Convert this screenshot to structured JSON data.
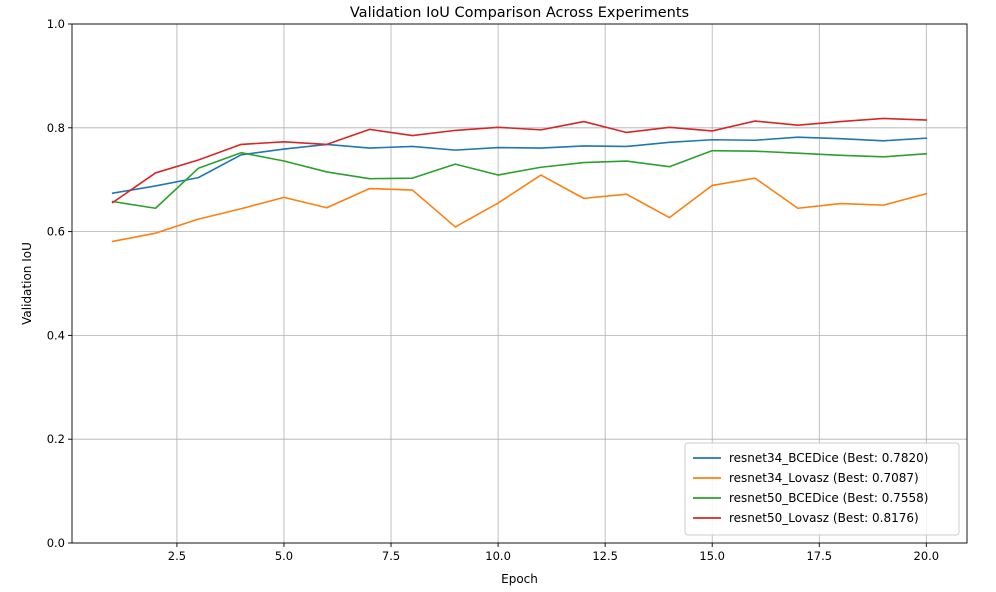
{
  "chart_data": {
    "type": "line",
    "title": "Validation IoU Comparison Across Experiments",
    "xlabel": "Epoch",
    "ylabel": "Validation IoU",
    "xlim": [
      0.05,
      20.95
    ],
    "ylim": [
      0.0,
      1.0
    ],
    "grid": true,
    "legend_position": "lower-right",
    "x": [
      1,
      2,
      3,
      4,
      5,
      6,
      7,
      8,
      9,
      10,
      11,
      12,
      13,
      14,
      15,
      16,
      17,
      18,
      19,
      20
    ],
    "xticks": [
      2.5,
      5.0,
      7.5,
      10.0,
      12.5,
      15.0,
      17.5,
      20.0
    ],
    "xtick_labels": [
      "2.5",
      "5.0",
      "7.5",
      "10.0",
      "12.5",
      "15.0",
      "17.5",
      "20.0"
    ],
    "yticks": [
      0.0,
      0.2,
      0.4,
      0.6,
      0.8,
      1.0
    ],
    "ytick_labels": [
      "0.0",
      "0.2",
      "0.4",
      "0.6",
      "0.8",
      "1.0"
    ],
    "series": [
      {
        "name": "resnet34_BCEDice (Best: 0.7820)",
        "color": "#1f77b4",
        "values": [
          0.674,
          0.688,
          0.704,
          0.748,
          0.759,
          0.768,
          0.761,
          0.764,
          0.757,
          0.762,
          0.761,
          0.765,
          0.764,
          0.772,
          0.777,
          0.776,
          0.782,
          0.779,
          0.775,
          0.78
        ]
      },
      {
        "name": "resnet34_Lovasz (Best: 0.7087)",
        "color": "#ff7f0e",
        "values": [
          0.581,
          0.597,
          0.624,
          0.644,
          0.666,
          0.646,
          0.683,
          0.68,
          0.609,
          0.655,
          0.709,
          0.664,
          0.672,
          0.627,
          0.689,
          0.703,
          0.645,
          0.654,
          0.651,
          0.673
        ]
      },
      {
        "name": "resnet50_BCEDice (Best: 0.7558)",
        "color": "#2ca02c",
        "values": [
          0.658,
          0.645,
          0.722,
          0.752,
          0.736,
          0.715,
          0.702,
          0.703,
          0.73,
          0.709,
          0.724,
          0.733,
          0.736,
          0.725,
          0.756,
          0.755,
          0.751,
          0.747,
          0.744,
          0.75
        ]
      },
      {
        "name": "resnet50_Lovasz (Best: 0.8176)",
        "color": "#d62728",
        "values": [
          0.656,
          0.713,
          0.738,
          0.768,
          0.773,
          0.768,
          0.797,
          0.785,
          0.795,
          0.801,
          0.796,
          0.812,
          0.791,
          0.801,
          0.794,
          0.813,
          0.805,
          0.812,
          0.818,
          0.815
        ]
      }
    ]
  }
}
